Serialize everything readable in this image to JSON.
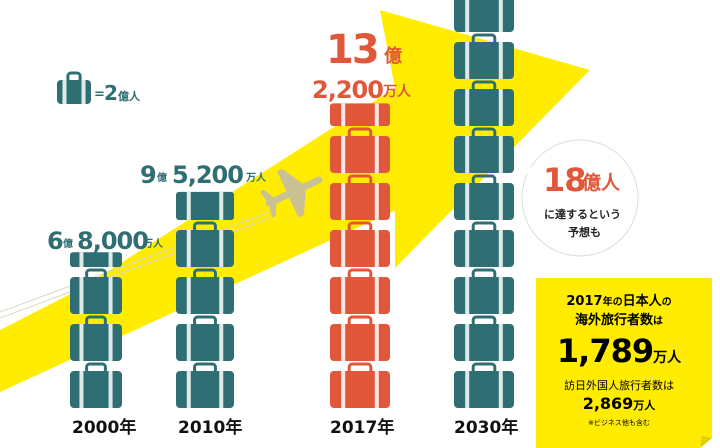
{
  "legend": {
    "eq_sign": "=",
    "num": "2",
    "unit": "億人"
  },
  "chart_data": {
    "type": "pictograph",
    "unit_label": "1 suitcase = 2億人",
    "categories": [
      "2000年",
      "2010年",
      "2017年",
      "2030年"
    ],
    "values": [
      6.8,
      9.52,
      13.22,
      18
    ],
    "units": "億人",
    "suitcase_counts": [
      3.4,
      4.76,
      6.61,
      9
    ],
    "labels": [
      {
        "a": "6",
        "b": "億",
        "c": "8,000",
        "d": "万人"
      },
      {
        "a": "9",
        "b": "億",
        "c": "5,200",
        "d": "万人"
      },
      {
        "a": "13",
        "b": "億",
        "c": "2,200",
        "d": "万人"
      }
    ],
    "forecast": {
      "num": "18",
      "unit": "億人",
      "line1": "に達するという",
      "line2": "予想も"
    },
    "colors": {
      "teal": "#2f6f73",
      "highlight": "#e0573a",
      "arrow": "#ffec00"
    }
  },
  "note": {
    "l1_a": "2017",
    "l1_b": "年の",
    "l1_c": "日本人",
    "l1_d": "の",
    "l2_a": "海外旅行者数",
    "l2_b": "は",
    "l3_num": "1,789",
    "l3_unit": "万人",
    "l4": "訪日外国人旅行者数は",
    "l5_num": "2,869",
    "l5_unit": "万人",
    "footnote": "※ビジネス他も含む"
  }
}
